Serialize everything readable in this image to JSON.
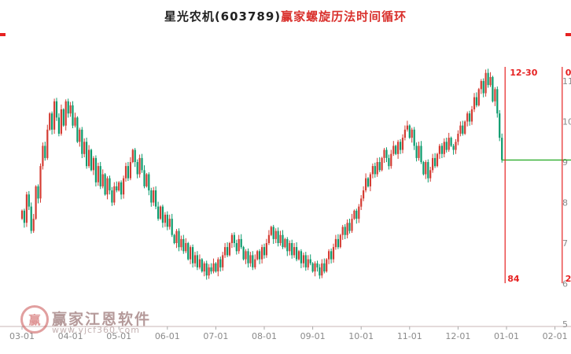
{
  "title": {
    "stock": "星光农机(603789)",
    "method": "赢家螺旋历法时间循环"
  },
  "watermark": {
    "logo_char": "赢",
    "brand": "赢家江恩软件",
    "url": "www.yjcf360.com"
  },
  "annotations": {
    "cycle_date_label": "12-30",
    "cycle_number_label": "84",
    "edge_top_fragment": "0",
    "edge_bottom_fragment": "2"
  },
  "colors": {
    "up": "#d43c33",
    "down": "#0b9b6d",
    "cycle_line": "#e62222",
    "support_line": "#2fae2f",
    "axis": "#c9b6b6",
    "tick_label": "#8a8a8a"
  },
  "chart_data": {
    "type": "candlestick",
    "title": "星光农机(603789)赢家螺旋历法时间循环",
    "x_ticks": [
      "03-01",
      "04-01",
      "05-01",
      "06-01",
      "07-01",
      "08-01",
      "09-01",
      "10-01",
      "11-01",
      "12-01",
      "01-01",
      "02-01"
    ],
    "y_ticks": [
      11,
      10,
      9,
      8,
      7,
      6,
      5
    ],
    "ylim": [
      5,
      11.5
    ],
    "grid": false,
    "legend": "none",
    "first_open": 7.6,
    "closes": [
      7.8,
      7.5,
      8.2,
      7.9,
      7.3,
      7.6,
      8.4,
      8.1,
      8.9,
      9.4,
      9.1,
      9.8,
      10.2,
      9.8,
      10.5,
      10.1,
      9.7,
      10.3,
      9.9,
      10.5,
      10.2,
      10.4,
      9.9,
      10.1,
      9.5,
      9.8,
      9.2,
      9.5,
      8.9,
      9.3,
      8.8,
      9.1,
      8.5,
      8.9,
      8.4,
      8.7,
      8.2,
      8.6,
      8.3,
      8.0,
      8.4,
      8.3,
      8.5,
      8.2,
      8.6,
      8.9,
      8.6,
      9.0,
      9.3,
      9.0,
      8.7,
      9.1,
      8.8,
      8.4,
      8.7,
      8.3,
      8.0,
      8.3,
      7.9,
      7.6,
      7.9,
      7.5,
      7.7,
      7.4,
      7.6,
      7.2,
      7.0,
      7.3,
      6.9,
      7.1,
      6.8,
      7.0,
      6.6,
      6.9,
      6.5,
      6.7,
      6.4,
      6.6,
      6.3,
      6.5,
      6.2,
      6.4,
      6.3,
      6.5,
      6.3,
      6.6,
      6.4,
      6.7,
      6.9,
      6.7,
      7.0,
      7.2,
      7.0,
      6.8,
      7.1,
      6.9,
      6.6,
      6.8,
      6.5,
      6.7,
      6.4,
      6.6,
      6.8,
      6.6,
      6.9,
      6.7,
      7.0,
      7.2,
      7.4,
      7.1,
      7.3,
      7.0,
      7.2,
      6.9,
      7.1,
      6.8,
      7.0,
      6.7,
      6.9,
      6.6,
      6.8,
      6.5,
      6.7,
      6.4,
      6.6,
      6.5,
      6.3,
      6.5,
      6.4,
      6.2,
      6.5,
      6.3,
      6.6,
      6.8,
      6.6,
      6.9,
      7.1,
      6.9,
      7.2,
      7.4,
      7.2,
      7.5,
      7.3,
      7.6,
      7.8,
      7.6,
      7.9,
      8.1,
      8.3,
      8.6,
      8.4,
      8.7,
      8.9,
      8.7,
      9.0,
      8.8,
      9.1,
      9.3,
      9.1,
      8.9,
      9.2,
      9.4,
      9.2,
      9.5,
      9.3,
      9.6,
      9.8,
      9.9,
      9.6,
      9.8,
      9.4,
      9.1,
      9.4,
      9.0,
      8.7,
      9.0,
      8.6,
      8.8,
      9.1,
      8.9,
      9.2,
      9.4,
      9.2,
      9.5,
      9.3,
      9.6,
      9.4,
      9.3,
      9.5,
      9.7,
      9.9,
      9.7,
      10.0,
      10.2,
      10.0,
      10.3,
      10.6,
      10.4,
      10.8,
      11.0,
      10.7,
      11.2,
      10.9,
      11.1,
      10.5,
      10.8,
      10.2,
      9.6,
      9.05
    ],
    "last_close": 9.05,
    "support_level": 9.05,
    "cycle_line_month_index": 9.97,
    "edge_line_month_index": 11.15
  }
}
